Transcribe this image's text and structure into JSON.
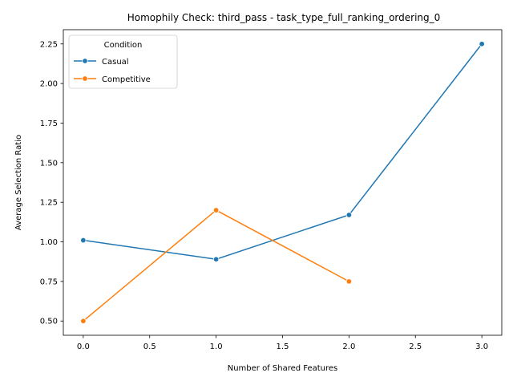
{
  "chart_data": {
    "type": "line",
    "title": "Homophily Check: third_pass - task_type_full_ranking_ordering_0",
    "xlabel": "Number of Shared Features",
    "ylabel": "Average Selection Ratio",
    "xlim": [
      -0.15,
      3.15
    ],
    "ylim": [
      0.41,
      2.34
    ],
    "xticks": [
      0.0,
      0.5,
      1.0,
      1.5,
      2.0,
      2.5,
      3.0
    ],
    "xtick_labels": [
      "0.0",
      "0.5",
      "1.0",
      "1.5",
      "2.0",
      "2.5",
      "3.0"
    ],
    "yticks": [
      0.5,
      0.75,
      1.0,
      1.25,
      1.5,
      1.75,
      2.0,
      2.25
    ],
    "ytick_labels": [
      "0.50",
      "0.75",
      "1.00",
      "1.25",
      "1.50",
      "1.75",
      "2.00",
      "2.25"
    ],
    "grid": false,
    "legend": {
      "title": "Condition",
      "placement": "top-left"
    },
    "series": [
      {
        "name": "Casual",
        "color": "#1f77b4",
        "x": [
          0,
          1,
          2,
          3
        ],
        "values": [
          1.01,
          0.89,
          1.17,
          2.25
        ]
      },
      {
        "name": "Competitive",
        "color": "#ff7f0e",
        "x": [
          0,
          1,
          2
        ],
        "values": [
          0.5,
          1.2,
          0.75
        ]
      }
    ]
  }
}
